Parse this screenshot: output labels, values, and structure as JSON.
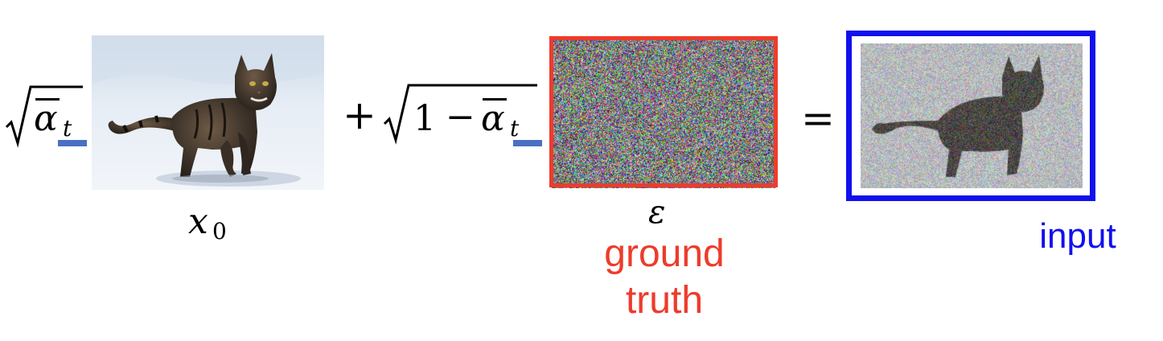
{
  "equation": {
    "coef_alpha_bar": "α",
    "coef_t": "t",
    "plus": "+",
    "one": "1",
    "minus": "−",
    "equals": "="
  },
  "labels": {
    "x": "x",
    "x_sub": "0",
    "epsilon": "ε",
    "ground_truth_line1": "ground",
    "ground_truth_line2": "truth",
    "input": "input"
  },
  "colors": {
    "ground_truth": "#ee3b2b",
    "input": "#1010ee",
    "dash": "#4a70c4",
    "text": "#000000"
  },
  "icons": {
    "clean_image": "cat-photo",
    "noise_image": "gaussian-noise",
    "noisy_image": "noisy-cat-photo"
  }
}
